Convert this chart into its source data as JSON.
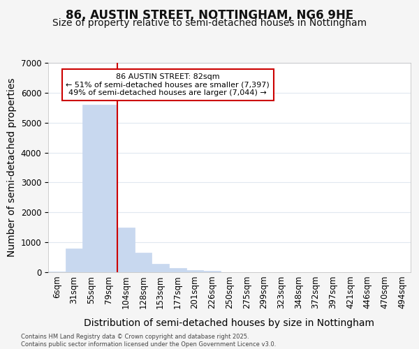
{
  "title_line1": "86, AUSTIN STREET, NOTTINGHAM, NG6 9HE",
  "title_line2": "Size of property relative to semi-detached houses in Nottingham",
  "xlabel": "Distribution of semi-detached houses by size in Nottingham",
  "ylabel": "Number of semi-detached properties",
  "categories": [
    "6sqm",
    "31sqm",
    "55sqm",
    "79sqm",
    "104sqm",
    "128sqm",
    "153sqm",
    "177sqm",
    "201sqm",
    "226sqm",
    "250sqm",
    "275sqm",
    "299sqm",
    "323sqm",
    "348sqm",
    "372sqm",
    "397sqm",
    "421sqm",
    "446sqm",
    "470sqm",
    "494sqm"
  ],
  "values": [
    30,
    800,
    5600,
    5600,
    1500,
    650,
    280,
    150,
    80,
    40,
    8,
    3,
    1,
    0,
    0,
    0,
    0,
    0,
    0,
    0,
    0
  ],
  "bar_color": "#c8d8ef",
  "bar_edge_color": "#c8d8ef",
  "vline_color": "#cc0000",
  "annotation_box_text": "86 AUSTIN STREET: 82sqm\n← 51% of semi-detached houses are smaller (7,397)\n49% of semi-detached houses are larger (7,044) →",
  "annotation_box_edge_color": "#cc0000",
  "annotation_box_bg": "#ffffff",
  "ylim": [
    0,
    7000
  ],
  "yticks": [
    0,
    1000,
    2000,
    3000,
    4000,
    5000,
    6000,
    7000
  ],
  "footer_text": "Contains HM Land Registry data © Crown copyright and database right 2025.\nContains public sector information licensed under the Open Government Licence v3.0.",
  "bg_color": "#f5f5f5",
  "plot_bg_color": "#ffffff",
  "grid_color": "#e0e8f0",
  "title_fontsize": 12,
  "subtitle_fontsize": 10,
  "axis_label_fontsize": 10,
  "tick_fontsize": 8.5
}
